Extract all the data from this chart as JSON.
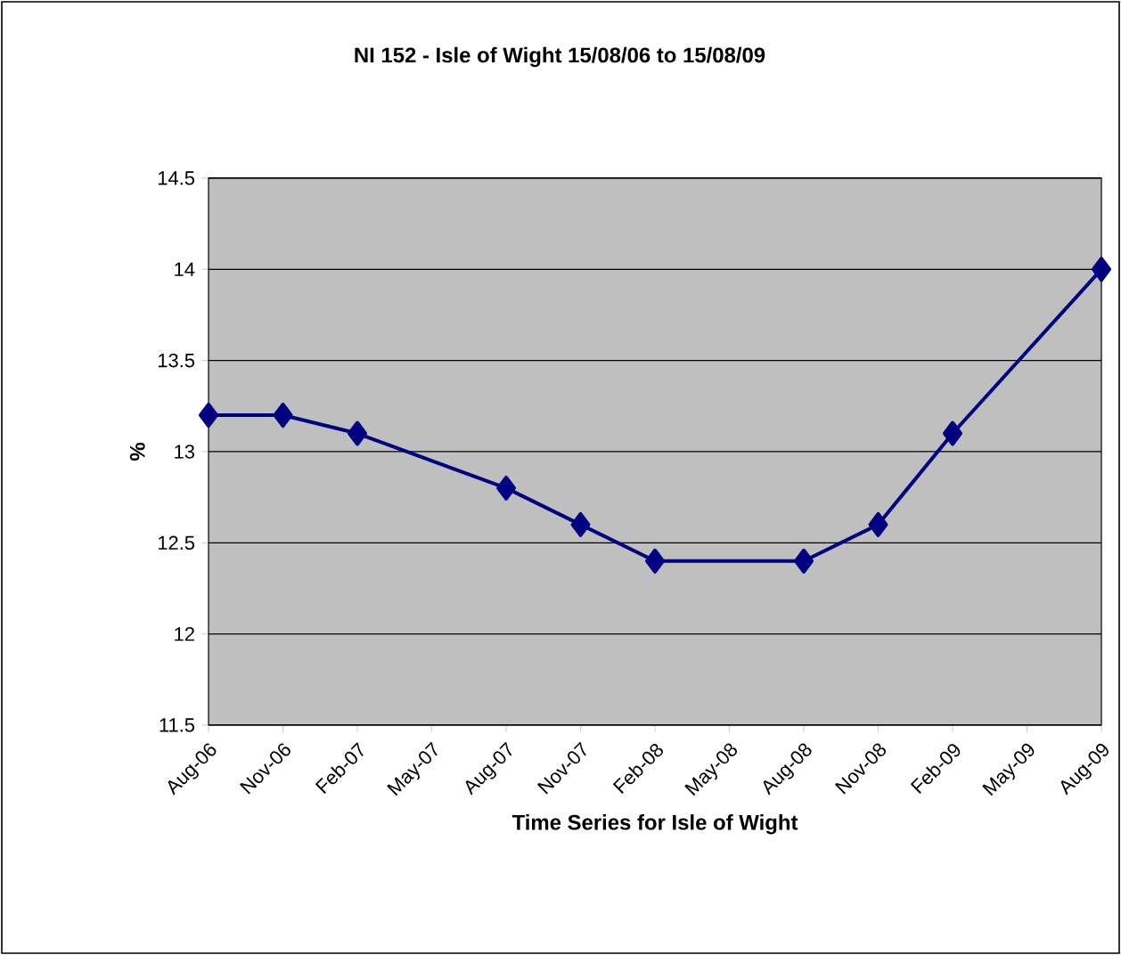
{
  "chart_data": {
    "type": "line",
    "title": "NI 152 - Isle of Wight 15/08/06 to 15/08/09",
    "xlabel": "Time Series for Isle of Wight",
    "ylabel": "%",
    "categories": [
      "Aug-06",
      "Nov-06",
      "Feb-07",
      "May-07",
      "Aug-07",
      "Nov-07",
      "Feb-08",
      "May-08",
      "Aug-08",
      "Nov-08",
      "Feb-09",
      "May-09",
      "Aug-09"
    ],
    "series": [
      {
        "color": "#000080",
        "values": [
          13.2,
          13.2,
          13.1,
          null,
          12.8,
          12.6,
          12.4,
          null,
          12.4,
          12.6,
          13.1,
          null,
          14.0
        ]
      }
    ],
    "ylim": [
      11.5,
      14.5
    ],
    "yticks": [
      11.5,
      12,
      12.5,
      13,
      13.5,
      14,
      14.5
    ],
    "grid": "y",
    "marker": "diamond",
    "line_style": "solid"
  }
}
